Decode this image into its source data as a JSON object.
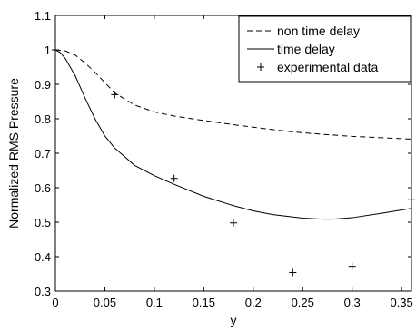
{
  "chart_data": {
    "type": "line",
    "title": "",
    "xlabel": "y",
    "ylabel": "Normalized RMS Pressure",
    "xlim": [
      0,
      0.36
    ],
    "ylim": [
      0.3,
      1.1
    ],
    "xticks": [
      0,
      0.05,
      0.1,
      0.15,
      0.2,
      0.25,
      0.3,
      0.35
    ],
    "xtick_labels": [
      "0",
      "0.05",
      "0.1",
      "0.15",
      "0.2",
      "0.25",
      "0.3",
      "0.35"
    ],
    "yticks": [
      0.3,
      0.4,
      0.5,
      0.6,
      0.7,
      0.8,
      0.9,
      1.0,
      1.1
    ],
    "ytick_labels": [
      "0.3",
      "0.4",
      "0.5",
      "0.6",
      "0.7",
      "0.8",
      "0.9",
      "1",
      "1.1"
    ],
    "grid": false,
    "legend_position": "top-right",
    "series": [
      {
        "name": "non time delay",
        "style": "dashed",
        "color": "#000000",
        "x": [
          0,
          0.01,
          0.02,
          0.03,
          0.04,
          0.05,
          0.06,
          0.08,
          0.1,
          0.12,
          0.15,
          0.18,
          0.21,
          0.24,
          0.27,
          0.3,
          0.33,
          0.36
        ],
        "y": [
          1.0,
          0.997,
          0.985,
          0.962,
          0.935,
          0.905,
          0.875,
          0.84,
          0.82,
          0.808,
          0.795,
          0.783,
          0.772,
          0.762,
          0.755,
          0.749,
          0.745,
          0.741
        ]
      },
      {
        "name": "time delay",
        "style": "solid",
        "color": "#000000",
        "x": [
          0,
          0.005,
          0.01,
          0.02,
          0.03,
          0.04,
          0.05,
          0.06,
          0.08,
          0.1,
          0.12,
          0.15,
          0.18,
          0.2,
          0.22,
          0.25,
          0.27,
          0.28,
          0.3,
          0.33,
          0.36
        ],
        "y": [
          1.0,
          0.992,
          0.975,
          0.925,
          0.86,
          0.8,
          0.75,
          0.715,
          0.665,
          0.635,
          0.61,
          0.575,
          0.548,
          0.533,
          0.522,
          0.512,
          0.509,
          0.509,
          0.513,
          0.526,
          0.54
        ]
      },
      {
        "name": "experimental data",
        "style": "plus-markers",
        "color": "#000000",
        "x": [
          0,
          0.06,
          0.12,
          0.18,
          0.24,
          0.3,
          0.36
        ],
        "y": [
          1.0,
          0.87,
          0.627,
          0.498,
          0.354,
          0.372,
          0.565
        ]
      }
    ]
  }
}
